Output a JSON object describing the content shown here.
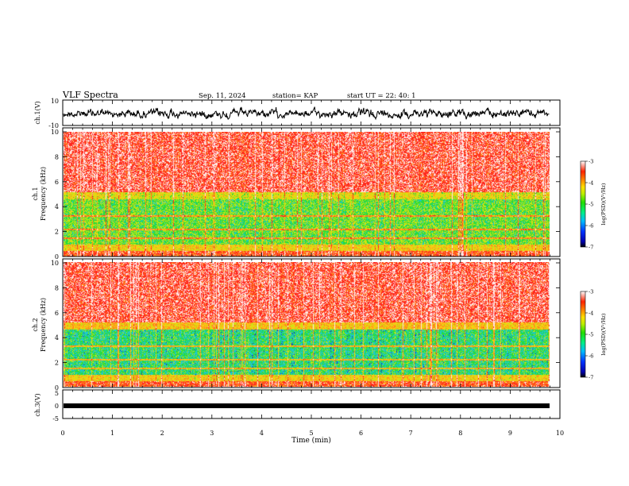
{
  "header": {
    "title": "VLF Spectra",
    "date": "Sep. 11, 2024",
    "station": "station= KAP",
    "start": "start  UT  =   22: 40: 1"
  },
  "chart_data": [
    {
      "type": "line",
      "name": "ch1-waveform",
      "ylabel": "ch.1(V)",
      "ylim": [
        -10,
        10
      ],
      "yticks": [
        "10",
        "-10"
      ],
      "xlim": [
        0,
        10
      ]
    },
    {
      "type": "heatmap",
      "name": "ch1-spectrogram",
      "ylabel_top": "ch.1",
      "ylabel": "Frequency (kHz)",
      "ylim": [
        0,
        10
      ],
      "yticks": [
        "0",
        "2",
        "4",
        "6",
        "8",
        "10"
      ],
      "xlim": [
        0,
        10
      ],
      "colorbar": {
        "label": "log(PSD)(V²/Hz)",
        "range": [
          -7,
          -3
        ],
        "ticks": [
          "-3",
          "-4",
          "-5",
          "-6",
          "-7"
        ]
      }
    },
    {
      "type": "heatmap",
      "name": "ch2-spectrogram",
      "ylabel_top": "ch.2",
      "ylabel": "Frequency (kHz)",
      "ylim": [
        0,
        10
      ],
      "yticks": [
        "0",
        "2",
        "4",
        "6",
        "8",
        "10"
      ],
      "xlim": [
        0,
        10
      ],
      "colorbar": {
        "label": "log(PSD)(V²/Hz)",
        "range": [
          -7,
          -3
        ],
        "ticks": [
          "-3",
          "-4",
          "-5",
          "-6",
          "-7"
        ]
      }
    },
    {
      "type": "line",
      "name": "ch3-waveform",
      "ylabel": "ch.3(V)",
      "ylim": [
        -5,
        5
      ],
      "yticks": [
        "5",
        "0",
        "-5"
      ],
      "xlim": [
        0,
        10
      ],
      "xticks": [
        "0",
        "1",
        "2",
        "3",
        "4",
        "5",
        "6",
        "7",
        "8",
        "9",
        "10"
      ],
      "xlabel": "Time (min)"
    }
  ],
  "colors": {
    "red": "#ff2020",
    "orange": "#ff9a1a",
    "yellow": "#e8e000",
    "green": "#22dd22",
    "cyan": "#22cccc",
    "blue": "#1133ee",
    "trace": "#000000"
  }
}
